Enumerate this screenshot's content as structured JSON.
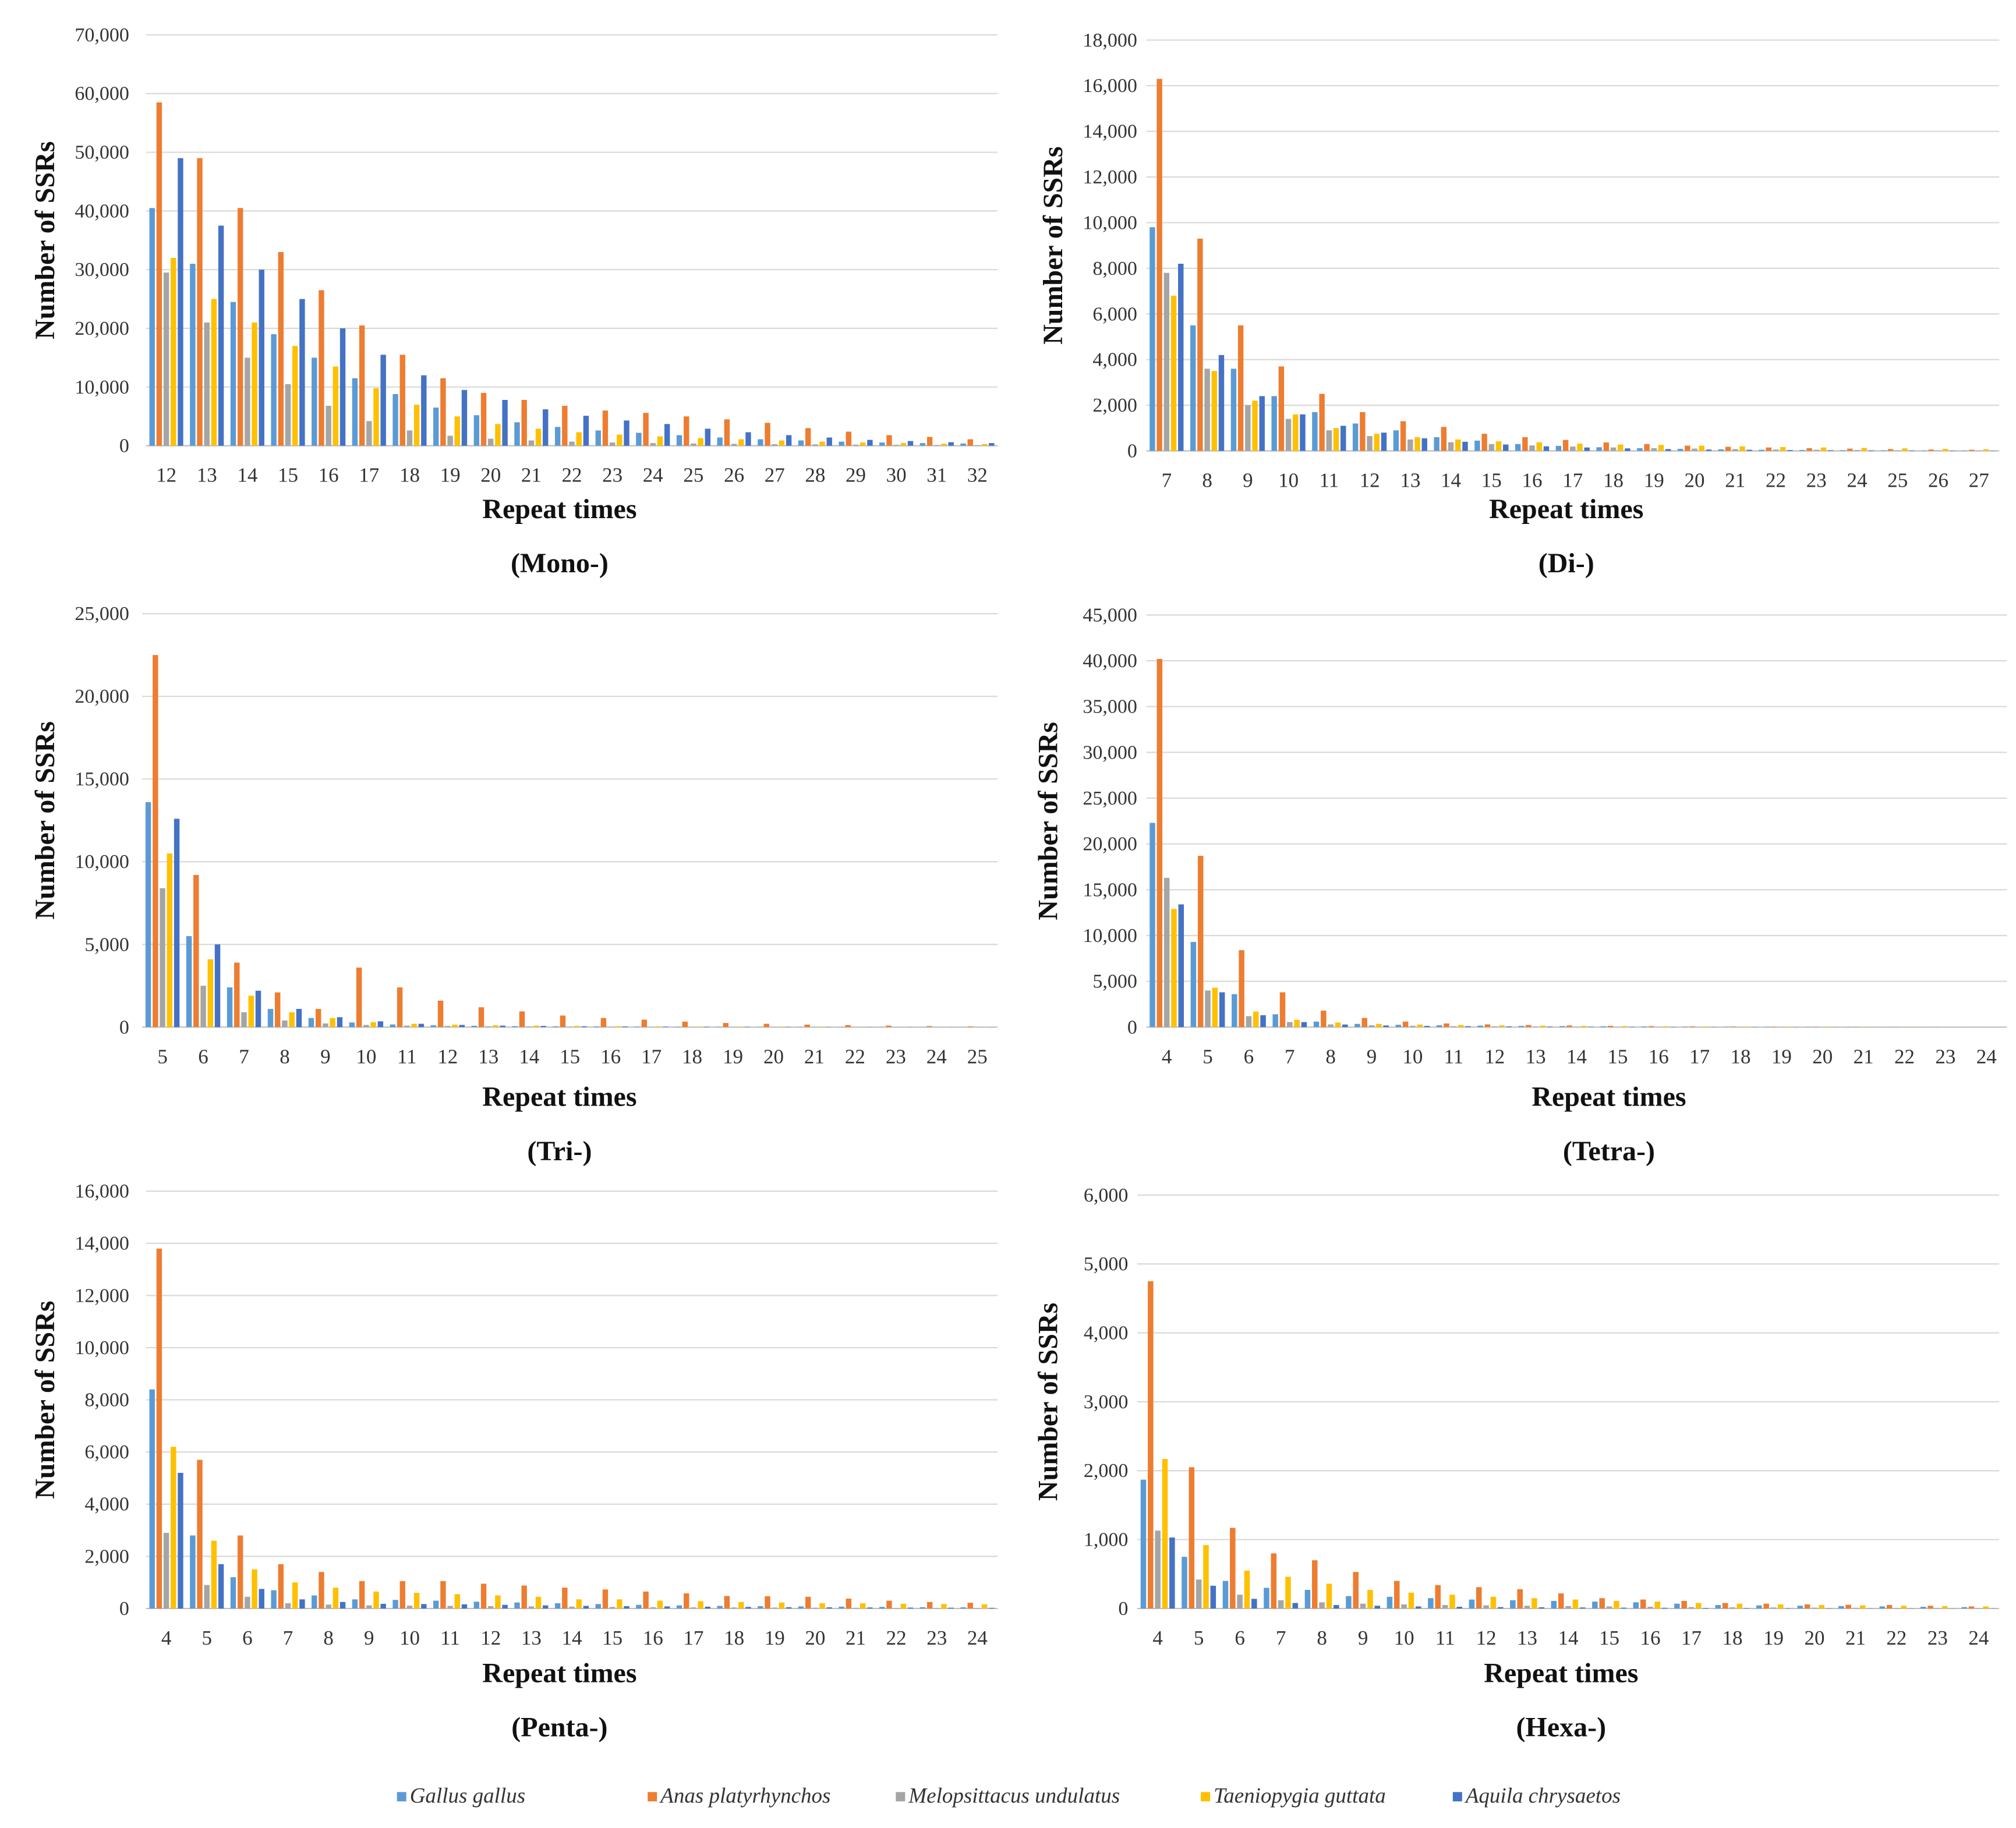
{
  "series_colors": [
    "#5B9BD5",
    "#ED7D31",
    "#A5A5A5",
    "#FFC000",
    "#4472C4"
  ],
  "legend": [
    {
      "name": "Gallus gallus"
    },
    {
      "name": "Anas platyrhynchos"
    },
    {
      "name": "Melopsittacus undulatus"
    },
    {
      "name": "Taeniopygia guttata"
    },
    {
      "name": "Aquila chrysaetos"
    }
  ],
  "chart_data": [
    {
      "type": "bar",
      "panel_label": "(Mono-)",
      "xlabel": "Repeat times",
      "ylabel": "Number of SSRs",
      "ylim": [
        0,
        70000
      ],
      "yticks": [
        0,
        10000,
        20000,
        30000,
        40000,
        50000,
        60000,
        70000
      ],
      "ytick_labels": [
        "0",
        "10,000",
        "20,000",
        "30,000",
        "40,000",
        "50,000",
        "60,000",
        "70,000"
      ],
      "categories": [
        "12",
        "13",
        "14",
        "15",
        "16",
        "17",
        "18",
        "19",
        "20",
        "21",
        "22",
        "23",
        "24",
        "25",
        "26",
        "27",
        "28",
        "29",
        "30",
        "31",
        "32"
      ],
      "series": [
        {
          "name": "Gallus gallus",
          "values": [
            40500,
            31000,
            24500,
            19000,
            15000,
            11500,
            8800,
            6500,
            5200,
            4000,
            3200,
            2600,
            2200,
            1800,
            1400,
            1100,
            900,
            700,
            550,
            450,
            380
          ]
        },
        {
          "name": "Anas platyrhynchos",
          "values": [
            58500,
            49000,
            40500,
            33000,
            26500,
            20500,
            15500,
            11500,
            9000,
            7800,
            6800,
            6000,
            5600,
            5000,
            4500,
            3900,
            3000,
            2400,
            1800,
            1500,
            1100
          ]
        },
        {
          "name": "Melopsittacus undulatus",
          "values": [
            29500,
            21000,
            15000,
            10500,
            6800,
            4200,
            2600,
            1700,
            1200,
            900,
            700,
            550,
            450,
            380,
            320,
            270,
            230,
            190,
            160,
            130,
            110
          ]
        },
        {
          "name": "Taeniopygia guttata",
          "values": [
            32000,
            25000,
            21000,
            17000,
            13500,
            9800,
            7000,
            5000,
            3700,
            2900,
            2300,
            1900,
            1600,
            1300,
            1100,
            900,
            700,
            550,
            450,
            350,
            280
          ]
        },
        {
          "name": "Aquila chrysaetos",
          "values": [
            49000,
            37500,
            30000,
            25000,
            20000,
            15500,
            12000,
            9500,
            7800,
            6200,
            5100,
            4300,
            3700,
            2900,
            2300,
            1800,
            1400,
            1000,
            800,
            600,
            450
          ]
        }
      ]
    },
    {
      "type": "bar",
      "panel_label": "(Di-)",
      "xlabel": "Repeat times",
      "ylabel": "Number of SSRs",
      "ylim": [
        0,
        18000
      ],
      "yticks": [
        0,
        2000,
        4000,
        6000,
        8000,
        10000,
        12000,
        14000,
        16000,
        18000
      ],
      "ytick_labels": [
        "0",
        "2,000",
        "4,000",
        "6,000",
        "8,000",
        "10,000",
        "12,000",
        "14,000",
        "16,000",
        "18,000"
      ],
      "categories": [
        "7",
        "8",
        "9",
        "10",
        "11",
        "12",
        "13",
        "14",
        "15",
        "16",
        "17",
        "18",
        "19",
        "20",
        "21",
        "22",
        "23",
        "24",
        "25",
        "26",
        "27"
      ],
      "series": [
        {
          "name": "Gallus gallus",
          "values": [
            9800,
            5500,
            3600,
            2400,
            1700,
            1200,
            900,
            600,
            450,
            300,
            220,
            160,
            120,
            90,
            70,
            50,
            40,
            30,
            25,
            20,
            15
          ]
        },
        {
          "name": "Anas platyrhynchos",
          "values": [
            16300,
            9300,
            5500,
            3700,
            2500,
            1700,
            1300,
            1050,
            750,
            600,
            480,
            370,
            300,
            230,
            180,
            150,
            120,
            100,
            80,
            60,
            50
          ]
        },
        {
          "name": "Melopsittacus undulatus",
          "values": [
            7800,
            3600,
            2000,
            1400,
            900,
            650,
            500,
            380,
            300,
            240,
            190,
            150,
            120,
            100,
            80,
            60,
            50,
            40,
            30,
            25,
            20
          ]
        },
        {
          "name": "Taeniopygia guttata",
          "values": [
            6800,
            3500,
            2200,
            1600,
            1000,
            750,
            600,
            500,
            420,
            380,
            320,
            280,
            260,
            230,
            200,
            170,
            150,
            130,
            110,
            90,
            70
          ]
        },
        {
          "name": "Aquila chrysaetos",
          "values": [
            8200,
            4200,
            2400,
            1600,
            1100,
            800,
            550,
            400,
            280,
            200,
            150,
            110,
            80,
            60,
            50,
            40,
            30,
            25,
            20,
            15,
            10
          ]
        }
      ]
    },
    {
      "type": "bar",
      "panel_label": "(Tri-)",
      "xlabel": "Repeat times",
      "ylabel": "Number of SSRs",
      "ylim": [
        0,
        25000
      ],
      "yticks": [
        0,
        5000,
        10000,
        15000,
        20000,
        25000
      ],
      "ytick_labels": [
        "0",
        "5,000",
        "10,000",
        "15,000",
        "20,000",
        "25,000"
      ],
      "categories": [
        "5",
        "6",
        "7",
        "8",
        "9",
        "10",
        "11",
        "12",
        "13",
        "14",
        "15",
        "16",
        "17",
        "18",
        "19",
        "20",
        "21",
        "22",
        "23",
        "24",
        "25"
      ],
      "series": [
        {
          "name": "Gallus gallus",
          "values": [
            13600,
            5500,
            2400,
            1100,
            550,
            280,
            160,
            110,
            80,
            60,
            50,
            40,
            30,
            25,
            20,
            15,
            12,
            10,
            8,
            6,
            5
          ]
        },
        {
          "name": "Anas platyrhynchos",
          "values": [
            22500,
            9200,
            3900,
            2100,
            1100,
            3600,
            2400,
            1600,
            1200,
            950,
            700,
            550,
            450,
            330,
            250,
            200,
            150,
            120,
            90,
            60,
            40
          ]
        },
        {
          "name": "Melopsittacus undulatus",
          "values": [
            8400,
            2500,
            900,
            400,
            220,
            130,
            90,
            70,
            50,
            40,
            30,
            25,
            20,
            15,
            12,
            10,
            8,
            6,
            5,
            4,
            3
          ]
        },
        {
          "name": "Taeniopygia guttata",
          "values": [
            10500,
            4100,
            1900,
            900,
            550,
            300,
            200,
            150,
            110,
            90,
            70,
            55,
            45,
            35,
            28,
            22,
            18,
            14,
            10,
            8,
            6
          ]
        },
        {
          "name": "Aquila chrysaetos",
          "values": [
            12600,
            5000,
            2200,
            1100,
            600,
            350,
            200,
            130,
            90,
            70,
            50,
            40,
            30,
            25,
            20,
            15,
            12,
            10,
            8,
            6,
            5
          ]
        }
      ]
    },
    {
      "type": "bar",
      "panel_label": "(Tetra-)",
      "xlabel": "Repeat times",
      "ylabel": "Number of SSRs",
      "ylim": [
        0,
        45000
      ],
      "yticks": [
        0,
        5000,
        10000,
        15000,
        20000,
        25000,
        30000,
        35000,
        40000,
        45000
      ],
      "ytick_labels": [
        "0",
        "5,000",
        "10,000",
        "15,000",
        "20,000",
        "25,000",
        "30,000",
        "35,000",
        "40,000",
        "45,000"
      ],
      "categories": [
        "4",
        "5",
        "6",
        "7",
        "8",
        "9",
        "10",
        "11",
        "12",
        "13",
        "14",
        "15",
        "16",
        "17",
        "18",
        "19",
        "20",
        "21",
        "22",
        "23",
        "24"
      ],
      "series": [
        {
          "name": "Gallus gallus",
          "values": [
            22300,
            9300,
            3600,
            1400,
            600,
            350,
            250,
            200,
            160,
            130,
            110,
            90,
            70,
            55,
            45,
            35,
            28,
            22,
            18,
            14,
            10
          ]
        },
        {
          "name": "Anas platyrhynchos",
          "values": [
            40200,
            18700,
            8400,
            3800,
            1800,
            1000,
            600,
            400,
            300,
            230,
            180,
            140,
            110,
            80,
            60,
            45,
            35,
            28,
            22,
            18,
            14
          ]
        },
        {
          "name": "Melopsittacus undulatus",
          "values": [
            16300,
            4000,
            1200,
            550,
            300,
            200,
            140,
            100,
            80,
            60,
            45,
            35,
            28,
            22,
            18,
            14,
            10,
            8,
            6,
            5,
            4
          ]
        },
        {
          "name": "Taeniopygia guttata",
          "values": [
            12900,
            4300,
            1700,
            800,
            500,
            350,
            280,
            230,
            190,
            160,
            130,
            110,
            90,
            70,
            55,
            45,
            35,
            28,
            22,
            18,
            14
          ]
        },
        {
          "name": "Aquila chrysaetos",
          "values": [
            13400,
            3800,
            1300,
            550,
            280,
            180,
            130,
            100,
            80,
            60,
            45,
            35,
            28,
            22,
            18,
            14,
            10,
            8,
            6,
            5,
            4
          ]
        }
      ]
    },
    {
      "type": "bar",
      "panel_label": "(Penta-)",
      "xlabel": "Repeat times",
      "ylabel": "Number of SSRs",
      "ylim": [
        0,
        16000
      ],
      "yticks": [
        0,
        2000,
        4000,
        6000,
        8000,
        10000,
        12000,
        14000,
        16000
      ],
      "ytick_labels": [
        "0",
        "2,000",
        "4,000",
        "6,000",
        "8,000",
        "10,000",
        "12,000",
        "14,000",
        "16,000"
      ],
      "categories": [
        "4",
        "5",
        "6",
        "7",
        "8",
        "9",
        "10",
        "11",
        "12",
        "13",
        "14",
        "15",
        "16",
        "17",
        "18",
        "19",
        "20",
        "21",
        "22",
        "23",
        "24"
      ],
      "series": [
        {
          "name": "Gallus gallus",
          "values": [
            8400,
            2800,
            1200,
            700,
            500,
            350,
            330,
            300,
            260,
            230,
            200,
            170,
            140,
            120,
            100,
            90,
            80,
            70,
            60,
            50,
            45
          ]
        },
        {
          "name": "Anas platyrhynchos",
          "values": [
            13800,
            5700,
            2800,
            1700,
            1400,
            1050,
            1050,
            1050,
            950,
            880,
            800,
            730,
            650,
            580,
            480,
            470,
            450,
            380,
            300,
            250,
            220
          ]
        },
        {
          "name": "Melopsittacus undulatus",
          "values": [
            2900,
            900,
            450,
            200,
            150,
            120,
            110,
            100,
            90,
            80,
            70,
            60,
            50,
            45,
            40,
            35,
            30,
            25,
            20,
            18,
            15
          ]
        },
        {
          "name": "Taeniopygia guttata",
          "values": [
            6200,
            2600,
            1500,
            1000,
            800,
            650,
            600,
            550,
            500,
            450,
            350,
            350,
            300,
            280,
            250,
            230,
            200,
            200,
            180,
            170,
            160
          ]
        },
        {
          "name": "Aquila chrysaetos",
          "values": [
            5200,
            1700,
            750,
            350,
            250,
            180,
            170,
            160,
            140,
            120,
            100,
            90,
            80,
            70,
            60,
            50,
            45,
            40,
            35,
            30,
            25
          ]
        }
      ]
    },
    {
      "type": "bar",
      "panel_label": "(Hexa-)",
      "xlabel": "Repeat times",
      "ylabel": "Number of SSRs",
      "ylim": [
        0,
        6000
      ],
      "yticks": [
        0,
        1000,
        2000,
        3000,
        4000,
        5000,
        6000
      ],
      "ytick_labels": [
        "0",
        "1,000",
        "2,000",
        "3,000",
        "4,000",
        "5,000",
        "6,000"
      ],
      "categories": [
        "4",
        "5",
        "6",
        "7",
        "8",
        "9",
        "10",
        "11",
        "12",
        "13",
        "14",
        "15",
        "16",
        "17",
        "18",
        "19",
        "20",
        "21",
        "22",
        "23",
        "24"
      ],
      "series": [
        {
          "name": "Gallus gallus",
          "values": [
            1870,
            750,
            400,
            300,
            270,
            180,
            170,
            150,
            130,
            120,
            110,
            100,
            90,
            70,
            50,
            45,
            40,
            35,
            30,
            25,
            20
          ]
        },
        {
          "name": "Anas platyrhynchos",
          "values": [
            4750,
            2050,
            1170,
            800,
            700,
            530,
            400,
            340,
            310,
            280,
            220,
            150,
            130,
            110,
            80,
            70,
            60,
            55,
            50,
            40,
            30
          ]
        },
        {
          "name": "Melopsittacus undulatus",
          "values": [
            1130,
            420,
            200,
            120,
            90,
            70,
            60,
            50,
            45,
            40,
            35,
            30,
            25,
            20,
            18,
            15,
            12,
            10,
            8,
            6,
            5
          ]
        },
        {
          "name": "Taeniopygia guttata",
          "values": [
            2170,
            920,
            550,
            460,
            360,
            270,
            230,
            200,
            170,
            150,
            130,
            110,
            100,
            80,
            70,
            60,
            50,
            45,
            40,
            35,
            30
          ]
        },
        {
          "name": "Aquila chrysaetos",
          "values": [
            1030,
            330,
            140,
            80,
            50,
            40,
            30,
            25,
            20,
            18,
            15,
            12,
            10,
            8,
            6,
            5,
            4,
            3,
            3,
            2,
            2
          ]
        }
      ]
    }
  ]
}
